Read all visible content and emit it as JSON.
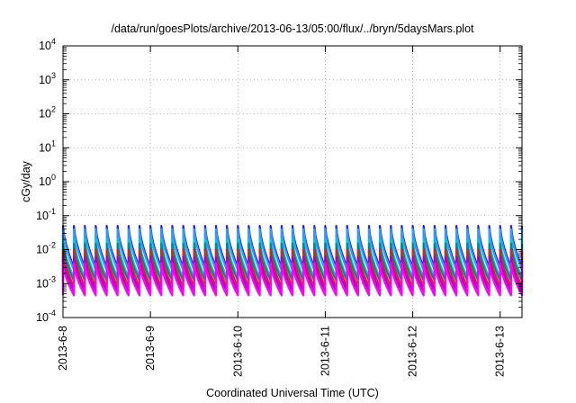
{
  "chart_data": {
    "type": "line",
    "title": "/data/run/goesPlots/archive/2013-06-13/05:00/flux/../bryn/5daysMars.plot",
    "xlabel": "Coordinated Universal Time (UTC)",
    "ylabel": "cGy/day",
    "yscale": "log",
    "ylim": [
      0.0001,
      10000
    ],
    "y_ticks": [
      {
        "base": "10",
        "exp": "-4",
        "value": 0.0001
      },
      {
        "base": "10",
        "exp": "-3",
        "value": 0.001
      },
      {
        "base": "10",
        "exp": "-2",
        "value": 0.01
      },
      {
        "base": "10",
        "exp": "-1",
        "value": 0.1
      },
      {
        "base": "10",
        "exp": "0",
        "value": 1
      },
      {
        "base": "10",
        "exp": "1",
        "value": 10
      },
      {
        "base": "10",
        "exp": "2",
        "value": 100
      },
      {
        "base": "10",
        "exp": "3",
        "value": 1000
      },
      {
        "base": "10",
        "exp": "4",
        "value": 10000
      }
    ],
    "xlim": [
      "2013-06-08T00:00",
      "2013-06-13T06:00"
    ],
    "x_ticks": [
      {
        "label": "2013-6-8",
        "date": "2013-06-08T00:00"
      },
      {
        "label": "2013-6-9",
        "date": "2013-06-09T00:00"
      },
      {
        "label": "2013-6-10",
        "date": "2013-06-10T00:00"
      },
      {
        "label": "2013-6-11",
        "date": "2013-06-11T00:00"
      },
      {
        "label": "2013-6-12",
        "date": "2013-06-12T00:00"
      },
      {
        "label": "2013-6-13",
        "date": "2013-06-13T00:00"
      }
    ],
    "grid": true,
    "legend": "none",
    "period_hours": 3,
    "series": [
      {
        "color": "#2222dd",
        "peak": 0.05,
        "trough": 0.003
      },
      {
        "color": "#3399ff",
        "peak": 0.04,
        "trough": 0.0025
      },
      {
        "color": "#00cccc",
        "peak": 0.02,
        "trough": 0.0015
      },
      {
        "color": "#008888",
        "peak": 0.015,
        "trough": 0.0012
      },
      {
        "color": "#dd2222",
        "peak": 0.01,
        "trough": 0.0008
      },
      {
        "color": "#aa00cc",
        "peak": 0.006,
        "trough": 0.0006
      },
      {
        "color": "#ff00ff",
        "peak": 0.004,
        "trough": 0.00045
      }
    ]
  }
}
